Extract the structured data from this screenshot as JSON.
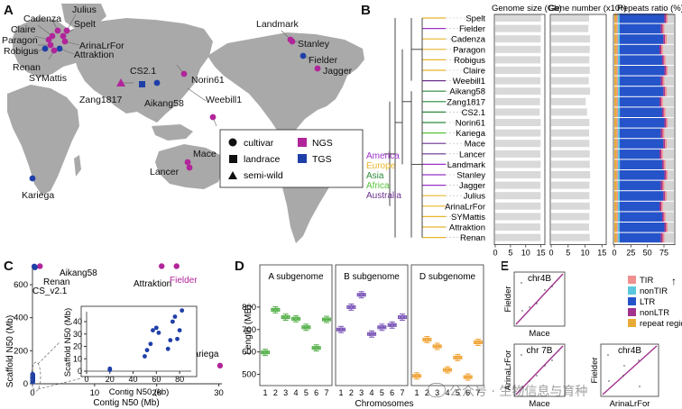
{
  "colors": {
    "ngs": "#b1259a",
    "tgs": "#1f3fa8",
    "america": "#9b30c8",
    "europe": "#e8b52a",
    "asia": "#2a8a3a",
    "africa": "#55c23a",
    "australia": "#6a2f8e",
    "land": "#a9a9a9",
    "sub_a": "#56b04b",
    "sub_b": "#7b57b8",
    "sub_d": "#f0a336",
    "tir": "#ef8f8f",
    "nontir": "#5bc6dd",
    "ltr": "#2553c9",
    "nonltr": "#a1328e",
    "repeat": "#e8aa36"
  },
  "panel_labels": {
    "a": "A",
    "b": "B",
    "c": "C",
    "d": "D",
    "e": "E"
  },
  "panel_a": {
    "map_labels": {
      "cadenza": "Cadenza",
      "julius": "Julius",
      "claire": "Claire",
      "spelt": "Spelt",
      "paragon": "Paragon",
      "arinalrfor": "ArinaLrFor",
      "robigus": "Robigus",
      "renan": "Renan",
      "attraktion": "Attraktion",
      "symattis": "SYMattis",
      "landmark": "Landmark",
      "stanley": "Stanley",
      "fielder": "Fielder",
      "cs21": "CS2.1",
      "norin61": "Norin61",
      "jagger": "Jagger",
      "zang1817": "Zang1817",
      "aikang58": "Aikang58",
      "weebill1": "Weebill1",
      "mace": "Mace",
      "lancer": "Lancer",
      "kariega": "Kariega"
    },
    "legend": {
      "cultivar": "cultivar",
      "landrace": "landrace",
      "semiwild": "semi-wild",
      "ngs": "NGS",
      "tgs": "TGS"
    }
  },
  "panel_b": {
    "headers": {
      "genome": "Genome size (Gb)",
      "gene": "Gene number (x10⁴)",
      "repeat": "Repeats ratio (%)"
    },
    "region_legend": [
      "America",
      "Europe",
      "Asia",
      "Africa",
      "Australia"
    ],
    "accessions": [
      {
        "name": "Spelt",
        "genome": 15.0,
        "gene": 11.2,
        "region": "europe"
      },
      {
        "name": "Fielder",
        "genome": 15.0,
        "gene": 11.0,
        "region": "america"
      },
      {
        "name": "Cadenza",
        "genome": 14.9,
        "gene": 11.5,
        "region": "europe"
      },
      {
        "name": "Paragon",
        "genome": 14.9,
        "gene": 11.4,
        "region": "europe"
      },
      {
        "name": "Robigus",
        "genome": 14.8,
        "gene": 11.3,
        "region": "europe"
      },
      {
        "name": "Claire",
        "genome": 14.9,
        "gene": 11.4,
        "region": "europe"
      },
      {
        "name": "Weebill1",
        "genome": 14.8,
        "gene": 11.1,
        "region": "australia"
      },
      {
        "name": "Aikang58",
        "genome": 14.9,
        "gene": 11.5,
        "region": "asia"
      },
      {
        "name": "Zang1817",
        "genome": 14.7,
        "gene": 10.2,
        "region": "asia"
      },
      {
        "name": "CS2.1",
        "genome": 14.6,
        "gene": 10.6,
        "region": "asia"
      },
      {
        "name": "Norin61",
        "genome": 14.9,
        "gene": 11.3,
        "region": "asia"
      },
      {
        "name": "Kariega",
        "genome": 14.9,
        "gene": 11.2,
        "region": "africa"
      },
      {
        "name": "Mace",
        "genome": 14.9,
        "gene": 11.3,
        "region": "australia"
      },
      {
        "name": "Lancer",
        "genome": 14.8,
        "gene": 11.4,
        "region": "australia"
      },
      {
        "name": "Landmark",
        "genome": 14.9,
        "gene": 11.4,
        "region": "america"
      },
      {
        "name": "Stanley",
        "genome": 14.9,
        "gene": 11.5,
        "region": "america"
      },
      {
        "name": "Jagger",
        "genome": 14.8,
        "gene": 11.3,
        "region": "america"
      },
      {
        "name": "Julius",
        "genome": 14.9,
        "gene": 11.3,
        "region": "europe"
      },
      {
        "name": "ArinaLrFor",
        "genome": 14.9,
        "gene": 11.4,
        "region": "europe"
      },
      {
        "name": "SYMattis",
        "genome": 14.9,
        "gene": 11.3,
        "region": "europe"
      },
      {
        "name": "Attraktion",
        "genome": 14.8,
        "gene": 11.2,
        "region": "europe"
      },
      {
        "name": "Renan",
        "genome": 14.9,
        "gene": 11.4,
        "region": "europe"
      }
    ],
    "genome_ticks": [
      0,
      5,
      10,
      15
    ],
    "gene_ticks": [
      0,
      5,
      10,
      15
    ],
    "repeat_ticks": [
      0,
      25,
      50,
      75
    ],
    "repeat_tick_labels": [
      "0",
      "25",
      "50",
      "75"
    ]
  },
  "panel_c": {
    "xlabel": "Contig N50 (Mb)",
    "ylabel": "Scaffold N50 (Mb)",
    "x_ticks": [
      0,
      10,
      20,
      30
    ],
    "y_ticks": [
      0,
      200,
      400,
      600
    ],
    "labels": {
      "aikang58": "Aikang58",
      "renan": "Renan",
      "cs": "CS_v2.1",
      "attraktion": "Attraktion",
      "fielder": "Fielder",
      "kariega": "Kariega"
    },
    "inset_xlabel": "Contig N50 (kb)",
    "inset_ylabel": "Scaffold N50 (Mb)",
    "inset_x_ticks": [
      0,
      20,
      40,
      60,
      80
    ],
    "inset_y_ticks": [
      0,
      10,
      20,
      30,
      40
    ]
  },
  "panel_d": {
    "ylabel": "Length (MB)",
    "xlabel": "Chromosomes",
    "y_ticks": [
      500,
      600,
      700,
      800
    ],
    "facets": [
      {
        "title": "A subgenome",
        "color_key": "sub_a",
        "medians": [
          598,
          788,
          755,
          748,
          710,
          618,
          745
        ]
      },
      {
        "title": "B subgenome",
        "color_key": "sub_b",
        "medians": [
          700,
          800,
          855,
          680,
          710,
          720,
          755
        ]
      },
      {
        "title": "D subgenome",
        "color_key": "sub_d",
        "medians": [
          493,
          655,
          625,
          520,
          575,
          488,
          643
        ]
      }
    ],
    "chrom_labels": [
      "1",
      "2",
      "3",
      "4",
      "5",
      "6",
      "7"
    ]
  },
  "panel_e": {
    "dotplots": [
      {
        "title": "chr4B",
        "ylabel": "Fielder",
        "xlabel": "Mace"
      },
      {
        "title": "chr 7B",
        "ylabel": "ArinaLrFor",
        "xlabel": "Mace"
      },
      {
        "title": "chr4B",
        "ylabel": "Fielder",
        "xlabel": "ArinaLrFor"
      }
    ],
    "legend": [
      "TIR",
      "nonTIR",
      "LTR",
      "nonLTR",
      "repeat region"
    ]
  },
  "watermark": "公众号 · 生物信息与育种"
}
